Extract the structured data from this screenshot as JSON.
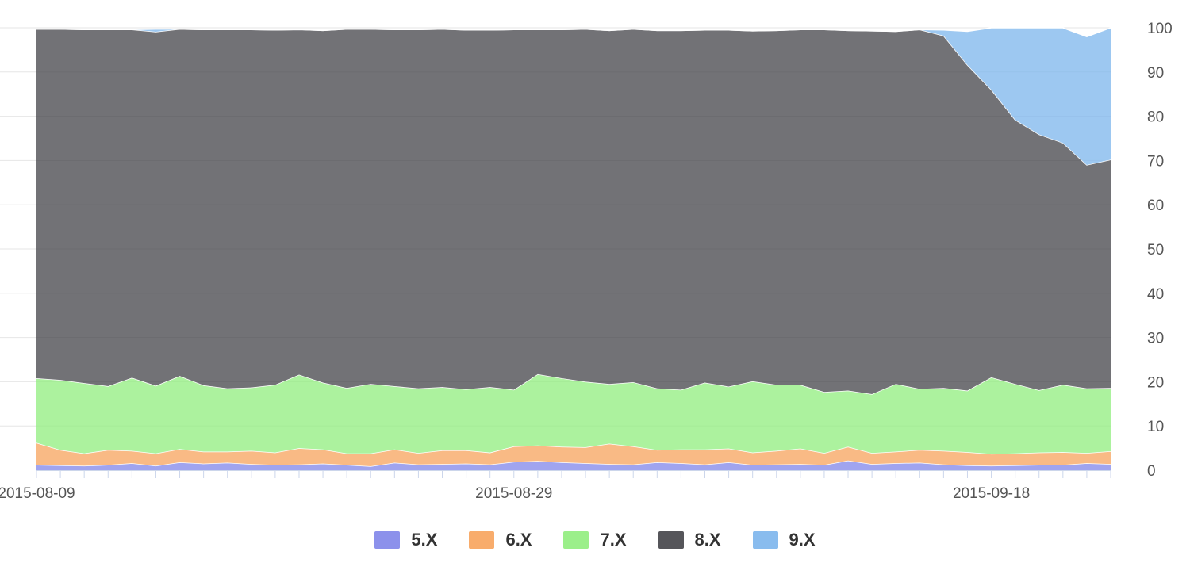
{
  "chart_data": {
    "type": "area",
    "stacked": true,
    "title": "",
    "xlabel": "",
    "ylabel": "",
    "ylim": [
      0,
      100
    ],
    "y_ticks": [
      0,
      10,
      20,
      30,
      40,
      50,
      60,
      70,
      80,
      90,
      100
    ],
    "y_axis_position": "right",
    "grid": true,
    "legend_position": "bottom-center",
    "x": [
      "2015-08-09",
      "2015-08-10",
      "2015-08-11",
      "2015-08-12",
      "2015-08-13",
      "2015-08-14",
      "2015-08-15",
      "2015-08-16",
      "2015-08-17",
      "2015-08-18",
      "2015-08-19",
      "2015-08-20",
      "2015-08-21",
      "2015-08-22",
      "2015-08-23",
      "2015-08-24",
      "2015-08-25",
      "2015-08-26",
      "2015-08-27",
      "2015-08-28",
      "2015-08-29",
      "2015-08-30",
      "2015-08-31",
      "2015-09-01",
      "2015-09-02",
      "2015-09-03",
      "2015-09-04",
      "2015-09-05",
      "2015-09-06",
      "2015-09-07",
      "2015-09-08",
      "2015-09-09",
      "2015-09-10",
      "2015-09-11",
      "2015-09-12",
      "2015-09-13",
      "2015-09-14",
      "2015-09-15",
      "2015-09-16",
      "2015-09-17",
      "2015-09-18",
      "2015-09-19",
      "2015-09-20",
      "2015-09-21",
      "2015-09-22",
      "2015-09-23"
    ],
    "x_tick_labels": [
      {
        "date": "2015-08-09",
        "label": "2015-08-09"
      },
      {
        "date": "2015-08-29",
        "label": "2015-08-29"
      },
      {
        "date": "2015-09-18",
        "label": "2015-09-18"
      }
    ],
    "series": [
      {
        "name": "5.X",
        "color": "#8085e9",
        "values": [
          1.2,
          1.1,
          1.0,
          1.2,
          1.6,
          1.0,
          1.8,
          1.5,
          1.7,
          1.4,
          1.2,
          1.3,
          1.5,
          1.2,
          0.9,
          1.7,
          1.3,
          1.4,
          1.5,
          1.3,
          1.9,
          2.1,
          1.8,
          1.6,
          1.4,
          1.3,
          1.8,
          1.6,
          1.3,
          1.8,
          1.2,
          1.3,
          1.4,
          1.2,
          2.2,
          1.4,
          1.6,
          1.7,
          1.3,
          1.1,
          1.0,
          1.1,
          1.2,
          1.2,
          1.6,
          1.4
        ]
      },
      {
        "name": "6.X",
        "color": "#f7a35c",
        "values": [
          5.0,
          3.5,
          2.8,
          3.4,
          2.8,
          2.8,
          3.0,
          2.7,
          2.5,
          3.0,
          2.8,
          3.7,
          3.2,
          2.6,
          2.9,
          3.0,
          2.6,
          3.1,
          3.0,
          2.7,
          3.5,
          3.5,
          3.5,
          3.6,
          4.6,
          4.1,
          2.8,
          3.1,
          3.4,
          3.1,
          2.8,
          3.1,
          3.5,
          2.7,
          3.1,
          2.5,
          2.6,
          2.9,
          3.1,
          3.0,
          2.7,
          2.7,
          2.8,
          2.9,
          2.3,
          2.9
        ]
      },
      {
        "name": "7.X",
        "color": "#90ed7d",
        "values": [
          14.6,
          15.8,
          15.9,
          14.4,
          16.5,
          15.3,
          16.5,
          15.0,
          14.3,
          14.3,
          15.3,
          16.6,
          15.1,
          14.8,
          15.7,
          14.3,
          14.6,
          14.3,
          13.8,
          14.8,
          12.8,
          16.1,
          15.5,
          14.8,
          13.5,
          14.5,
          13.9,
          13.5,
          15.1,
          14.0,
          16.1,
          14.9,
          14.4,
          13.8,
          12.7,
          13.3,
          15.3,
          13.8,
          14.2,
          13.9,
          17.3,
          15.7,
          14.1,
          15.2,
          14.6,
          14.3
        ]
      },
      {
        "name": "8.X",
        "color": "#434348",
        "values": [
          78.9,
          79.3,
          79.9,
          80.6,
          78.7,
          80.0,
          78.4,
          80.4,
          81.1,
          80.9,
          80.2,
          78.0,
          79.6,
          81.1,
          80.2,
          80.6,
          81.1,
          80.9,
          81.2,
          80.7,
          81.4,
          77.9,
          78.8,
          79.7,
          79.9,
          79.8,
          80.9,
          81.2,
          79.7,
          80.6,
          79.2,
          80.1,
          80.3,
          81.9,
          81.4,
          82.1,
          79.7,
          81.2,
          79.6,
          73.6,
          65.0,
          59.7,
          57.8,
          54.7,
          50.5,
          51.6
        ]
      },
      {
        "name": "9.X",
        "color": "#7cb5ec",
        "values": [
          0,
          0,
          0,
          0,
          0,
          0.6,
          0,
          0,
          0,
          0,
          0,
          0,
          0,
          0,
          0,
          0,
          0,
          0,
          0,
          0,
          0,
          0,
          0,
          0,
          0,
          0,
          0,
          0,
          0,
          0,
          0,
          0,
          0,
          0,
          0,
          0,
          0,
          0,
          1.3,
          7.6,
          14.0,
          20.8,
          24.1,
          26.0,
          29.0,
          29.8
        ]
      }
    ]
  }
}
